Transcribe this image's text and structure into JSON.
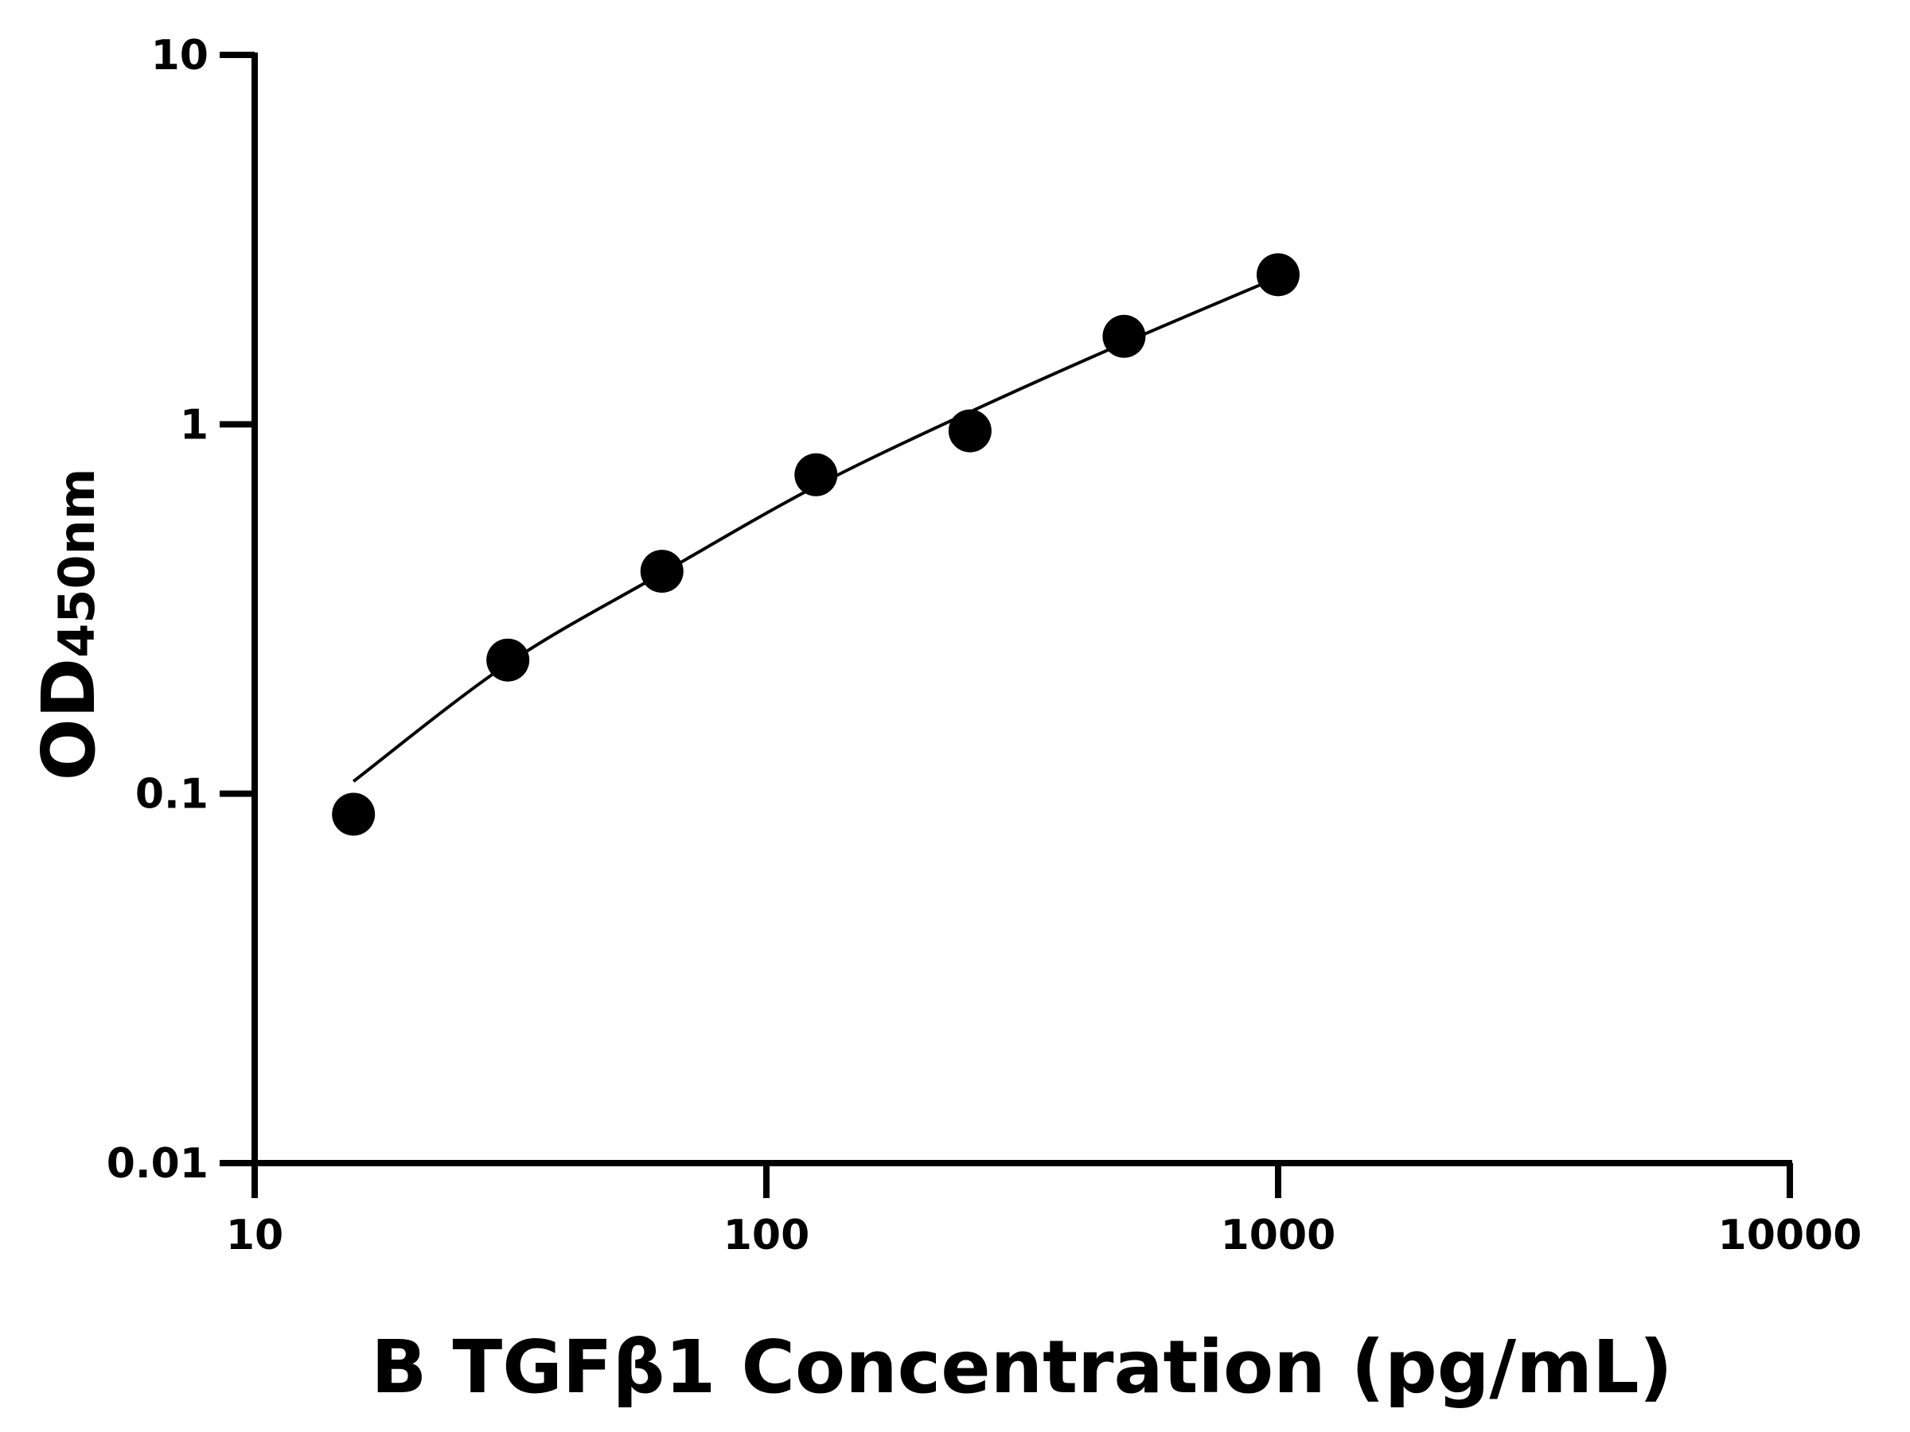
{
  "chart_data": {
    "type": "scatter",
    "title": "",
    "xlabel": "B TGFβ1 Concentration (pg/mL)",
    "ylabel_main": "OD",
    "ylabel_sub": "450nm",
    "x_scale": "log",
    "y_scale": "log",
    "xlim": [
      10,
      10000
    ],
    "ylim": [
      0.01,
      10
    ],
    "x_ticks": [
      "10",
      "100",
      "1000",
      "10000"
    ],
    "y_ticks": [
      "0.01",
      "0.1",
      "1",
      "10"
    ],
    "grid": false,
    "points": {
      "x": [
        15.6,
        31.25,
        62.5,
        125,
        250,
        500,
        1000
      ],
      "y": [
        0.088,
        0.23,
        0.4,
        0.73,
        0.96,
        1.73,
        2.54
      ]
    },
    "fit_curve": {
      "x": [
        15.6,
        31.25,
        62.5,
        125,
        250,
        500,
        1000
      ],
      "y": [
        0.108,
        0.225,
        0.395,
        0.68,
        1.08,
        1.66,
        2.5
      ]
    },
    "colors": {
      "points": "#000000",
      "line": "#000000",
      "axes": "#000000"
    }
  }
}
